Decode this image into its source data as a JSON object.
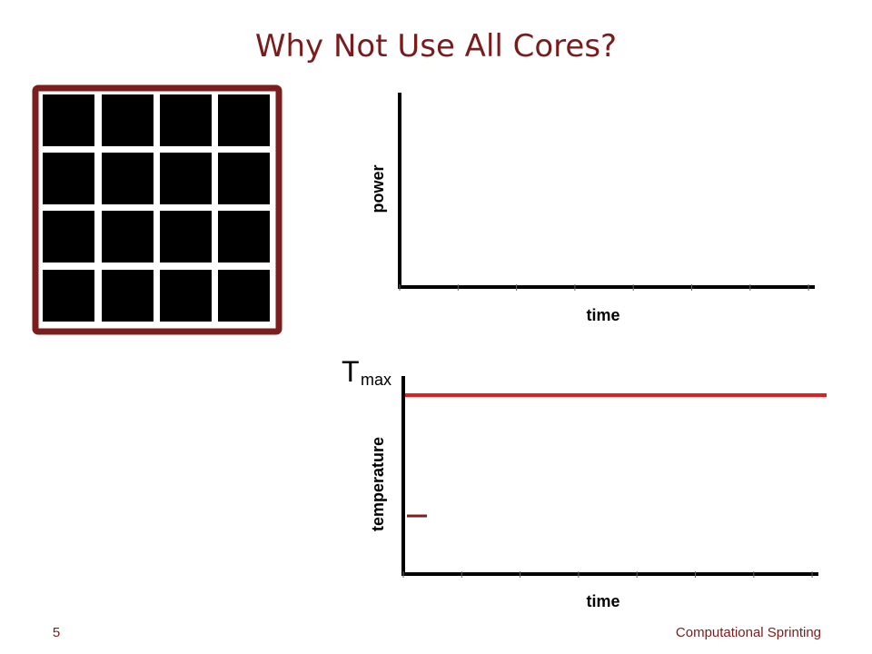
{
  "slide": {
    "title": "Why Not Use All Cores?",
    "power_chart": {
      "y_label": "power",
      "x_label": "time"
    },
    "temperature_chart": {
      "y_label": "temperature",
      "x_label": "time",
      "limit_label": "T",
      "limit_subscript": "max"
    },
    "footer": {
      "page_number": "5",
      "text": "Computational Sprinting"
    }
  }
}
